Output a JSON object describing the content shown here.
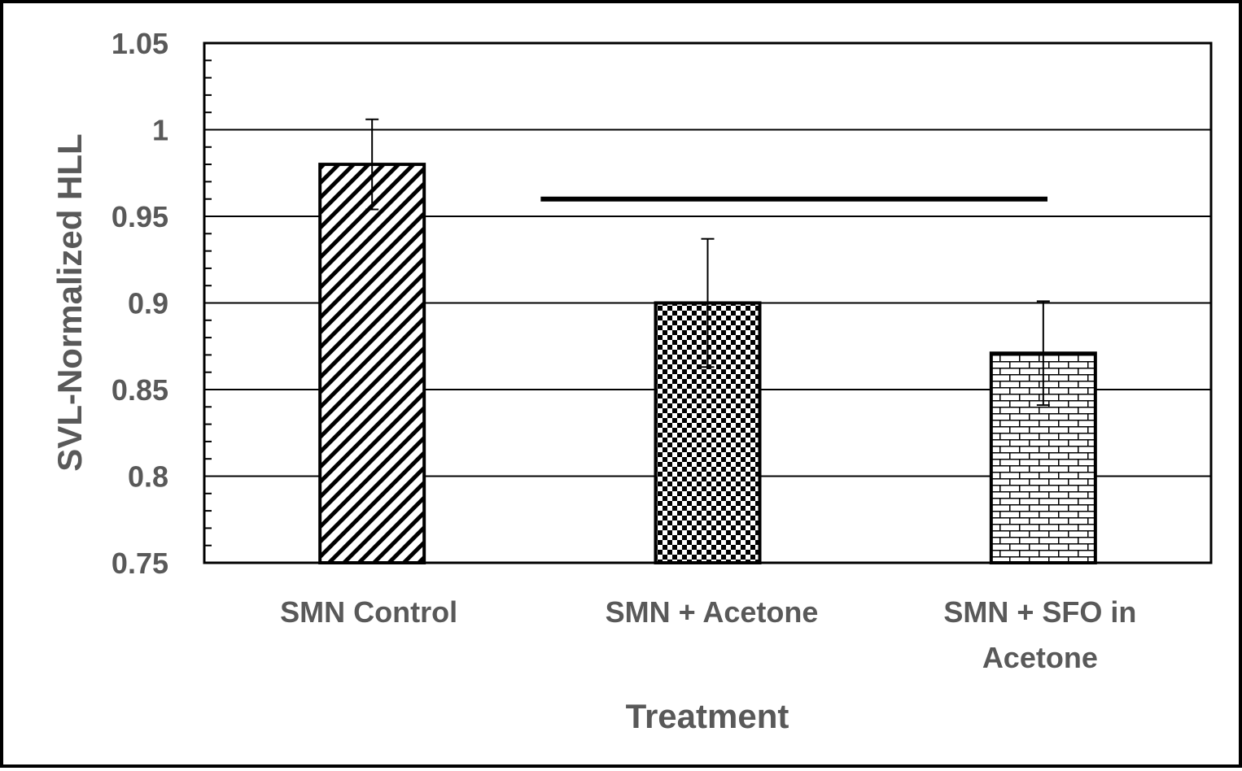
{
  "chart_data": {
    "type": "bar",
    "title": "",
    "xlabel": "Treatment",
    "ylabel": "SVL-Normalized HLL",
    "ylim": [
      0.75,
      1.05
    ],
    "yticks": [
      "0.75",
      "0.8",
      "0.85",
      "0.9",
      "0.95",
      "1",
      "1.05"
    ],
    "grid": true,
    "legend": "none",
    "categories": [
      [
        "SMN Control"
      ],
      [
        "SMN + Acetone"
      ],
      [
        "SMN + SFO in",
        "Acetone"
      ]
    ],
    "series": [
      {
        "values": [
          0.98,
          0.9,
          0.871
        ],
        "errors": [
          0.026,
          0.037,
          0.03
        ],
        "patterns": [
          "diagonal-stripes",
          "checkerboard",
          "brick"
        ]
      }
    ],
    "annotations": [
      {
        "type": "significance-bar",
        "from_category": 1,
        "to_category": 2,
        "y": 0.96
      }
    ],
    "colors": {
      "bar_stroke": "#000000",
      "bar_pattern": "#000000",
      "axis": "#000000",
      "text": "#595959"
    }
  }
}
